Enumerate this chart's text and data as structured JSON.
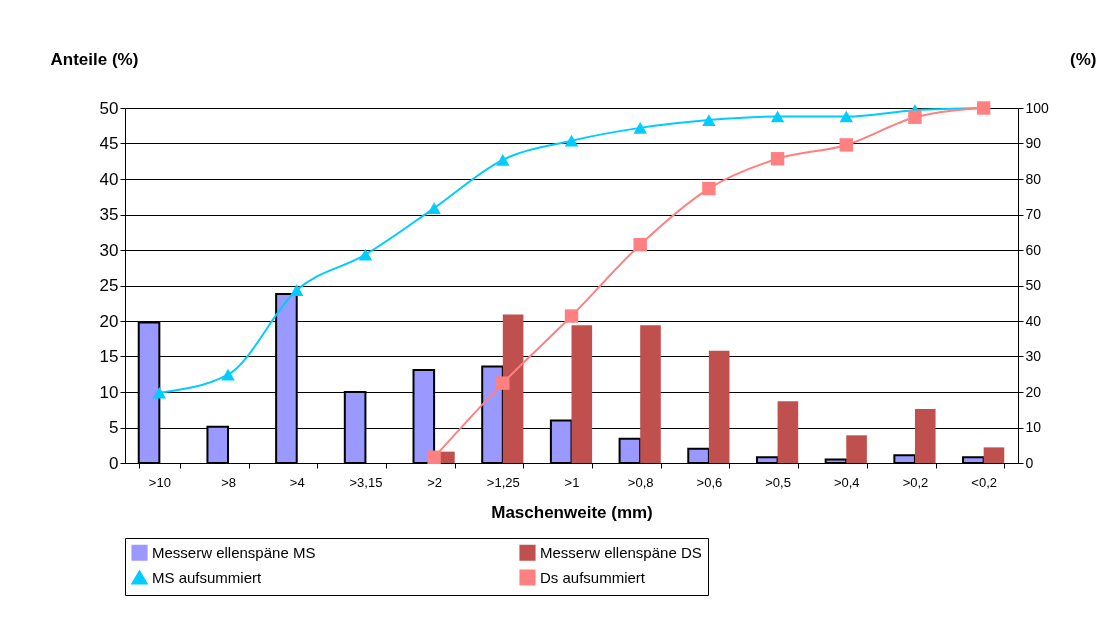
{
  "chart_data": {
    "type": "bar",
    "xlabel": "Maschenweite (mm)",
    "ylabel": "Anteile (%)",
    "y2label": "(%)",
    "categories": [
      ">10",
      ">8",
      ">4",
      ">3,15",
      ">2",
      ">1,25",
      ">1",
      ">0,8",
      ">0,6",
      ">0,5",
      ">0,4",
      ">0,2",
      "<0,2"
    ],
    "series": [
      {
        "name": "Messerw ellenspäne MS",
        "color": "#9999ff",
        "values": [
          19.8,
          5.1,
          23.8,
          10,
          13.1,
          13.6,
          6,
          3.4,
          2,
          0.8,
          0.5,
          1.1,
          0.8
        ]
      },
      {
        "name": "Messerw ellenspäne DS",
        "color": "#c0504d",
        "values": [
          null,
          null,
          null,
          null,
          1.6,
          20.9,
          19.4,
          19.4,
          15.8,
          8.7,
          3.9,
          7.6,
          2.2
        ]
      },
      {
        "name": "MS aufsummiert",
        "type": "line",
        "axis": "y2",
        "marker": "triangle",
        "color": "#00ccff",
        "values": [
          19.8,
          24.9,
          48.7,
          58.7,
          71.8,
          85.4,
          90.8,
          94.4,
          96.6,
          97.6,
          97.6,
          99.4,
          100
        ]
      },
      {
        "name": "Ds aufsummiert",
        "type": "line",
        "axis": "y2",
        "marker": "square",
        "color": "#ff8080",
        "values": [
          null,
          null,
          null,
          null,
          1.6,
          22.5,
          41.4,
          61.5,
          77.3,
          85.7,
          89.6,
          97.4,
          100
        ]
      }
    ],
    "ylim": [
      0,
      50
    ],
    "yticks": [
      0,
      5,
      10,
      15,
      20,
      25,
      30,
      35,
      40,
      45,
      50
    ],
    "y2lim": [
      0,
      100
    ],
    "y2ticks": [
      0,
      10,
      20,
      30,
      40,
      50,
      60,
      70,
      80,
      90,
      100
    ],
    "grid": "y",
    "legend": "bottom"
  }
}
